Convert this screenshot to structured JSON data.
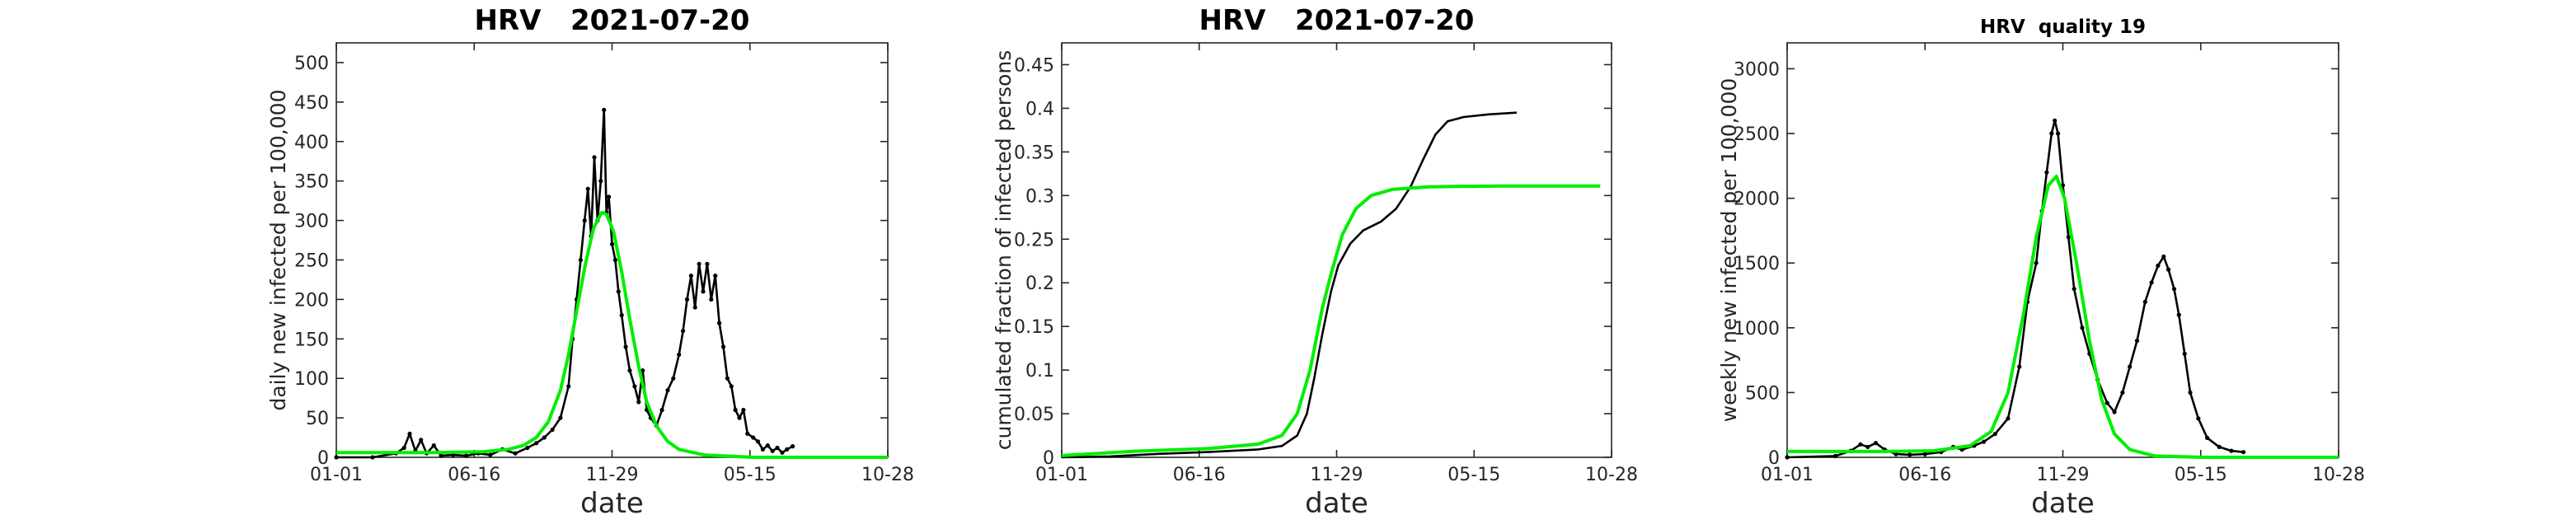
{
  "chart_data": [
    {
      "type": "line",
      "title": "HRV   2021-07-20",
      "xlabel": "date",
      "ylabel": "daily new infected per 100,000",
      "x_ticks": [
        "01-01",
        "06-16",
        "11-29",
        "05-15",
        "10-28"
      ],
      "xlim": [
        "2020-01-01",
        "2021-11-15"
      ],
      "ylim": [
        0,
        525
      ],
      "y_ticks": [
        0,
        50,
        100,
        150,
        200,
        250,
        300,
        350,
        400,
        450,
        500
      ],
      "colors": {
        "data": "#000000",
        "fit": "#00ee00"
      },
      "series": [
        {
          "style": "line-with-markers",
          "points": [
            [
              "2020-01-01",
              0
            ],
            [
              "2020-02-15",
              0
            ],
            [
              "2020-03-15",
              5
            ],
            [
              "2020-03-25",
              12
            ],
            [
              "2020-04-01",
              30
            ],
            [
              "2020-04-08",
              8
            ],
            [
              "2020-04-15",
              22
            ],
            [
              "2020-04-22",
              5
            ],
            [
              "2020-05-01",
              15
            ],
            [
              "2020-05-10",
              2
            ],
            [
              "2020-05-25",
              3
            ],
            [
              "2020-06-10",
              2
            ],
            [
              "2020-06-25",
              5
            ],
            [
              "2020-07-10",
              3
            ],
            [
              "2020-07-25",
              10
            ],
            [
              "2020-08-10",
              5
            ],
            [
              "2020-08-25",
              12
            ],
            [
              "2020-09-05",
              18
            ],
            [
              "2020-09-15",
              25
            ],
            [
              "2020-09-25",
              35
            ],
            [
              "2020-10-05",
              50
            ],
            [
              "2020-10-15",
              90
            ],
            [
              "2020-10-20",
              150
            ],
            [
              "2020-10-25",
              200
            ],
            [
              "2020-10-30",
              250
            ],
            [
              "2020-11-04",
              300
            ],
            [
              "2020-11-08",
              340
            ],
            [
              "2020-11-12",
              280
            ],
            [
              "2020-11-16",
              380
            ],
            [
              "2020-11-20",
              300
            ],
            [
              "2020-11-24",
              350
            ],
            [
              "2020-11-28",
              440
            ],
            [
              "2020-12-01",
              310
            ],
            [
              "2020-12-04",
              330
            ],
            [
              "2020-12-08",
              270
            ],
            [
              "2020-12-12",
              250
            ],
            [
              "2020-12-16",
              210
            ],
            [
              "2020-12-20",
              180
            ],
            [
              "2020-12-25",
              140
            ],
            [
              "2020-12-30",
              110
            ],
            [
              "2021-01-05",
              90
            ],
            [
              "2021-01-10",
              70
            ],
            [
              "2021-01-15",
              110
            ],
            [
              "2021-01-20",
              60
            ],
            [
              "2021-01-25",
              50
            ],
            [
              "2021-02-01",
              40
            ],
            [
              "2021-02-08",
              60
            ],
            [
              "2021-02-15",
              85
            ],
            [
              "2021-02-22",
              100
            ],
            [
              "2021-03-01",
              130
            ],
            [
              "2021-03-06",
              160
            ],
            [
              "2021-03-11",
              200
            ],
            [
              "2021-03-16",
              230
            ],
            [
              "2021-03-21",
              190
            ],
            [
              "2021-03-26",
              245
            ],
            [
              "2021-03-31",
              210
            ],
            [
              "2021-04-05",
              245
            ],
            [
              "2021-04-10",
              200
            ],
            [
              "2021-04-15",
              230
            ],
            [
              "2021-04-20",
              170
            ],
            [
              "2021-04-25",
              140
            ],
            [
              "2021-04-30",
              100
            ],
            [
              "2021-05-05",
              90
            ],
            [
              "2021-05-10",
              60
            ],
            [
              "2021-05-15",
              50
            ],
            [
              "2021-05-20",
              60
            ],
            [
              "2021-05-25",
              30
            ],
            [
              "2021-06-01",
              25
            ],
            [
              "2021-06-07",
              20
            ],
            [
              "2021-06-13",
              10
            ],
            [
              "2021-06-19",
              15
            ],
            [
              "2021-06-25",
              8
            ],
            [
              "2021-07-01",
              12
            ],
            [
              "2021-07-07",
              6
            ],
            [
              "2021-07-13",
              10
            ],
            [
              "2021-07-20",
              14
            ]
          ]
        },
        {
          "style": "line",
          "points": [
            [
              "2020-01-01",
              6
            ],
            [
              "2020-03-01",
              6
            ],
            [
              "2020-05-01",
              6
            ],
            [
              "2020-07-01",
              7
            ],
            [
              "2020-08-01",
              10
            ],
            [
              "2020-08-20",
              15
            ],
            [
              "2020-09-05",
              25
            ],
            [
              "2020-09-20",
              45
            ],
            [
              "2020-10-05",
              85
            ],
            [
              "2020-10-15",
              130
            ],
            [
              "2020-10-25",
              185
            ],
            [
              "2020-11-05",
              245
            ],
            [
              "2020-11-15",
              290
            ],
            [
              "2020-11-25",
              310
            ],
            [
              "2020-12-01",
              308
            ],
            [
              "2020-12-10",
              285
            ],
            [
              "2020-12-20",
              235
            ],
            [
              "2020-12-30",
              175
            ],
            [
              "2021-01-10",
              115
            ],
            [
              "2021-01-20",
              70
            ],
            [
              "2021-02-01",
              40
            ],
            [
              "2021-02-15",
              20
            ],
            [
              "2021-03-01",
              10
            ],
            [
              "2021-04-01",
              3
            ],
            [
              "2021-06-01",
              0
            ],
            [
              "2021-11-15",
              0
            ]
          ]
        }
      ]
    },
    {
      "type": "line",
      "title": "HRV   2021-07-20",
      "xlabel": "date",
      "ylabel": "cumulated fraction of infected persons",
      "x_ticks": [
        "01-01",
        "06-16",
        "11-29",
        "05-15",
        "10-28"
      ],
      "xlim": [
        "2020-01-01",
        "2021-11-15"
      ],
      "ylim": [
        0,
        0.475
      ],
      "y_ticks": [
        0,
        0.05,
        0.1,
        0.15,
        0.2,
        0.25,
        0.3,
        0.35,
        0.4,
        0.45
      ],
      "colors": {
        "data": "#000000",
        "fit": "#00ee00"
      },
      "series": [
        {
          "style": "line",
          "points": [
            [
              "2020-01-01",
              0
            ],
            [
              "2020-03-01",
              0.001
            ],
            [
              "2020-05-01",
              0.004
            ],
            [
              "2020-07-01",
              0.006
            ],
            [
              "2020-09-01",
              0.009
            ],
            [
              "2020-10-01",
              0.013
            ],
            [
              "2020-10-20",
              0.025
            ],
            [
              "2020-11-01",
              0.05
            ],
            [
              "2020-11-10",
              0.09
            ],
            [
              "2020-11-20",
              0.14
            ],
            [
              "2020-12-01",
              0.19
            ],
            [
              "2020-12-10",
              0.22
            ],
            [
              "2020-12-25",
              0.245
            ],
            [
              "2021-01-10",
              0.26
            ],
            [
              "2021-02-01",
              0.27
            ],
            [
              "2021-02-20",
              0.285
            ],
            [
              "2021-03-10",
              0.31
            ],
            [
              "2021-03-25",
              0.34
            ],
            [
              "2021-04-10",
              0.37
            ],
            [
              "2021-04-25",
              0.385
            ],
            [
              "2021-05-15",
              0.39
            ],
            [
              "2021-06-15",
              0.393
            ],
            [
              "2021-07-20",
              0.395
            ]
          ]
        },
        {
          "style": "line",
          "points": [
            [
              "2020-01-01",
              0.002
            ],
            [
              "2020-04-01",
              0.007
            ],
            [
              "2020-07-01",
              0.01
            ],
            [
              "2020-09-01",
              0.015
            ],
            [
              "2020-10-01",
              0.025
            ],
            [
              "2020-10-20",
              0.05
            ],
            [
              "2020-11-05",
              0.1
            ],
            [
              "2020-11-20",
              0.17
            ],
            [
              "2020-12-01",
              0.21
            ],
            [
              "2020-12-15",
              0.255
            ],
            [
              "2021-01-01",
              0.285
            ],
            [
              "2021-01-20",
              0.3
            ],
            [
              "2021-02-15",
              0.307
            ],
            [
              "2021-04-01",
              0.31
            ],
            [
              "2021-07-01",
              0.311
            ],
            [
              "2021-11-01",
              0.311
            ]
          ]
        }
      ]
    },
    {
      "type": "line",
      "title": "HRV  quality 19",
      "xlabel": "date",
      "ylabel": "weekly new infected per 100,000",
      "x_ticks": [
        "01-01",
        "06-16",
        "11-29",
        "05-15",
        "10-28"
      ],
      "xlim": [
        "2020-01-01",
        "2021-11-15"
      ],
      "ylim": [
        0,
        3200
      ],
      "y_ticks": [
        0,
        500,
        1000,
        1500,
        2000,
        2500,
        3000
      ],
      "colors": {
        "data": "#000000",
        "fit": "#00ee00"
      },
      "series": [
        {
          "style": "line-with-markers",
          "points": [
            [
              "2020-01-01",
              0
            ],
            [
              "2020-03-01",
              10
            ],
            [
              "2020-03-20",
              50
            ],
            [
              "2020-04-01",
              100
            ],
            [
              "2020-04-10",
              80
            ],
            [
              "2020-04-20",
              110
            ],
            [
              "2020-05-01",
              60
            ],
            [
              "2020-05-15",
              25
            ],
            [
              "2020-06-01",
              20
            ],
            [
              "2020-06-20",
              25
            ],
            [
              "2020-07-10",
              40
            ],
            [
              "2020-07-25",
              80
            ],
            [
              "2020-08-05",
              60
            ],
            [
              "2020-08-20",
              90
            ],
            [
              "2020-09-01",
              120
            ],
            [
              "2020-09-15",
              180
            ],
            [
              "2020-10-01",
              300
            ],
            [
              "2020-10-15",
              700
            ],
            [
              "2020-10-25",
              1200
            ],
            [
              "2020-11-05",
              1500
            ],
            [
              "2020-11-12",
              1900
            ],
            [
              "2020-11-18",
              2200
            ],
            [
              "2020-11-24",
              2500
            ],
            [
              "2020-11-28",
              2600
            ],
            [
              "2020-12-02",
              2500
            ],
            [
              "2020-12-08",
              2100
            ],
            [
              "2020-12-15",
              1700
            ],
            [
              "2020-12-22",
              1300
            ],
            [
              "2021-01-01",
              1000
            ],
            [
              "2021-01-10",
              800
            ],
            [
              "2021-01-20",
              600
            ],
            [
              "2021-02-01",
              420
            ],
            [
              "2021-02-10",
              350
            ],
            [
              "2021-02-20",
              500
            ],
            [
              "2021-03-01",
              700
            ],
            [
              "2021-03-10",
              900
            ],
            [
              "2021-03-20",
              1200
            ],
            [
              "2021-03-28",
              1350
            ],
            [
              "2021-04-05",
              1480
            ],
            [
              "2021-04-12",
              1550
            ],
            [
              "2021-04-18",
              1450
            ],
            [
              "2021-04-25",
              1300
            ],
            [
              "2021-05-01",
              1100
            ],
            [
              "2021-05-08",
              800
            ],
            [
              "2021-05-15",
              500
            ],
            [
              "2021-05-25",
              300
            ],
            [
              "2021-06-05",
              150
            ],
            [
              "2021-06-20",
              80
            ],
            [
              "2021-07-05",
              50
            ],
            [
              "2021-07-20",
              40
            ]
          ]
        },
        {
          "style": "line",
          "points": [
            [
              "2020-01-01",
              45
            ],
            [
              "2020-05-01",
              45
            ],
            [
              "2020-07-01",
              50
            ],
            [
              "2020-08-15",
              90
            ],
            [
              "2020-09-10",
              200
            ],
            [
              "2020-10-01",
              500
            ],
            [
              "2020-10-20",
              1100
            ],
            [
              "2020-11-05",
              1700
            ],
            [
              "2020-11-20",
              2100
            ],
            [
              "2020-11-30",
              2170
            ],
            [
              "2020-12-10",
              2000
            ],
            [
              "2020-12-25",
              1500
            ],
            [
              "2021-01-10",
              900
            ],
            [
              "2021-01-25",
              450
            ],
            [
              "2021-02-10",
              180
            ],
            [
              "2021-03-01",
              60
            ],
            [
              "2021-04-01",
              10
            ],
            [
              "2021-06-01",
              0
            ],
            [
              "2021-11-15",
              0
            ]
          ]
        }
      ]
    }
  ]
}
